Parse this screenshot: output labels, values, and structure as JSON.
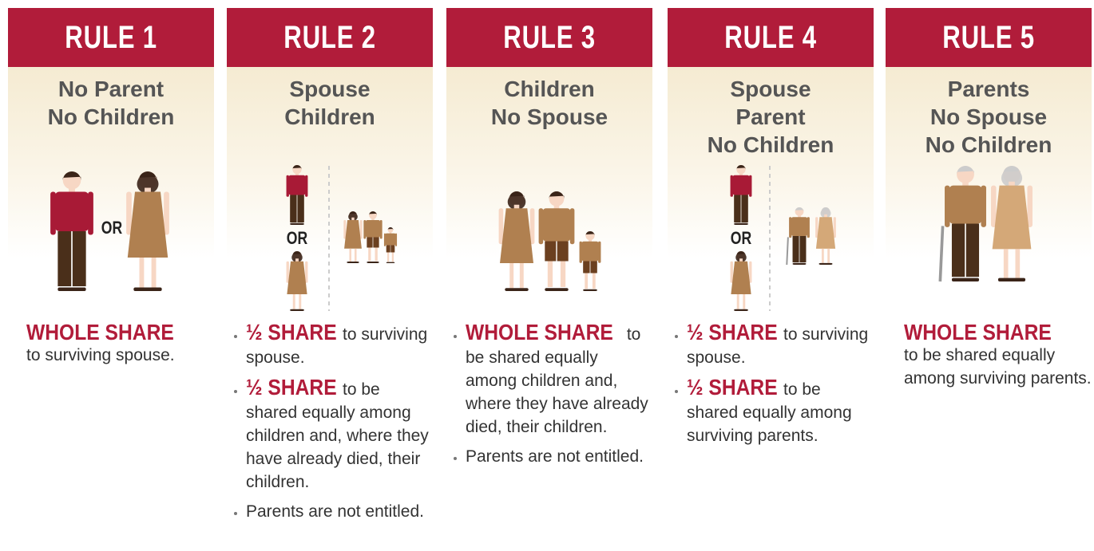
{
  "rules": [
    {
      "title": "RULE 1",
      "heading": [
        "No Parent",
        "No Children"
      ],
      "or": "OR",
      "bulleted": false,
      "items": [
        {
          "strong": "WHOLE SHARE",
          "text": "to surviving spouse."
        }
      ]
    },
    {
      "title": "RULE 2",
      "heading": [
        "Spouse",
        "Children"
      ],
      "or": "OR",
      "bulleted": true,
      "items": [
        {
          "strong": "½ SHARE",
          "text": "to surviving spouse."
        },
        {
          "strong": "½ SHARE",
          "text": "to be shared equally among children and, where they have already died, their children."
        },
        {
          "text": "Parents are not entitled."
        }
      ]
    },
    {
      "title": "RULE 3",
      "heading": [
        "Children",
        "No Spouse"
      ],
      "bulleted": true,
      "items": [
        {
          "strong": "WHOLE SHARE",
          "text": "to be shared equally among children and, where they have already died, their children."
        },
        {
          "text": "Parents are not entitled."
        }
      ]
    },
    {
      "title": "RULE 4",
      "heading": [
        "Spouse",
        "Parent",
        "No Children"
      ],
      "or": "OR",
      "bulleted": true,
      "items": [
        {
          "strong": "½ SHARE",
          "text": "to surviving spouse."
        },
        {
          "strong": "½ SHARE",
          "text": "to be shared equally among surviving parents."
        }
      ]
    },
    {
      "title": "RULE 5",
      "heading": [
        "Parents",
        "No Spouse",
        "No Children"
      ],
      "bulleted": false,
      "items": [
        {
          "strong": "WHOLE SHARE",
          "text": "to be shared equally among surviving parents."
        }
      ]
    }
  ]
}
